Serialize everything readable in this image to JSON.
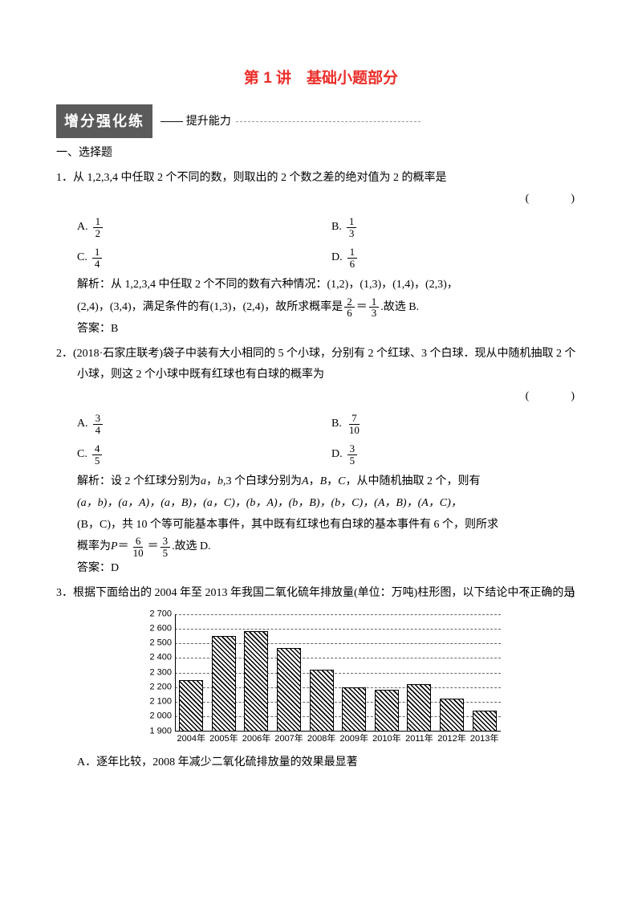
{
  "title": "第 1 讲　基础小题部分",
  "banner": {
    "box": "增分强化练",
    "sub": "—— 提升能力"
  },
  "section1": "一、选择题",
  "q1": {
    "num": "1．",
    "stem": "从 1,2,3,4 中任取 2 个不同的数，则取出的 2 个数之差的绝对值为 2 的概率是",
    "paren": "(　　)",
    "opts": {
      "A": "A.",
      "B": "B.",
      "C": "C.",
      "D": "D.",
      "a_n": "1",
      "a_d": "2",
      "b_n": "1",
      "b_d": "3",
      "c_n": "1",
      "c_d": "4",
      "d_n": "1",
      "d_d": "6"
    },
    "sol1": "解析：从 1,2,3,4 中任取 2 个不同的数有六种情况：(1,2)，(1,3)，(1,4)，(2,3)，",
    "sol2a": "(2,4)，(3,4)，满足条件的有(1,3)，(2,4)，故所求概率是",
    "f1_n": "2",
    "f1_d": "6",
    "eq": "＝",
    "f2_n": "1",
    "f2_d": "3",
    "sol2b": ".故选 B.",
    "ans": "答案：B"
  },
  "q2": {
    "num": "2．",
    "stem": "(2018·石家庄联考)袋子中装有大小相同的 5 个小球，分别有 2 个红球、3 个白球．现从中随机抽取 2 个小球，则这 2 个小球中既有红球也有白球的概率为",
    "paren": "(　　)",
    "opts": {
      "A": "A.",
      "B": "B.",
      "C": "C.",
      "D": "D.",
      "a_n": "3",
      "a_d": "4",
      "b_n": "7",
      "b_d": "10",
      "c_n": "4",
      "c_d": "5",
      "d_n": "3",
      "d_d": "5"
    },
    "sol1a": "解析：设 2 个红球分别为 ",
    "a": "a",
    "comma": "，",
    "b": "b",
    "sol1b": ",3 个白球分别为 ",
    "A": "A",
    "B": "B",
    "C": "C",
    "sol1c": "，从中随机抽取 2 个，则有",
    "sol2": "(a，b)，(a，A)，(a，B)，(a，C)，(b，A)，(b，B)，(b，C)，(A，B)，(A，C)，",
    "sol3": "(B，C)，共 10 个等可能基本事件，其中既有红球也有白球的基本事件有 6 个，则所求",
    "sol4a": "概率为 ",
    "P": "P",
    "eq1": "＝",
    "f1_n": "6",
    "f1_d": "10",
    "eq2": "＝",
    "f2_n": "3",
    "f2_d": "5",
    "sol4b": ".故选 D.",
    "ans": "答案：D"
  },
  "q3": {
    "num": "3．",
    "stem": "根据下面给出的 2004 年至 2013 年我国二氧化硫年排放量(单位：万吨)柱形图，以下结论中不正确的是",
    "paren": "(　　)",
    "optA": "A．逐年比较，2008 年减少二氧化硫排放量的效果最显著"
  },
  "chart": {
    "type": "bar",
    "ymin": 1900,
    "ymax": 2700,
    "ystep": 100,
    "yticks": [
      "2 700",
      "2 600",
      "2 500",
      "2 400",
      "2 300",
      "2 200",
      "2 100",
      "2 000",
      "1 900"
    ],
    "categories": [
      "2004年",
      "2005年",
      "2006年",
      "2007年",
      "2008年",
      "2009年",
      "2010年",
      "2011年",
      "2012年",
      "2013年"
    ],
    "values": [
      2250,
      2550,
      2580,
      2470,
      2320,
      2200,
      2180,
      2220,
      2120,
      2040
    ],
    "bar_color_pattern": "hatch-45",
    "bar_border": "#000000",
    "grid_style": "dashed",
    "grid_color": "#666666",
    "axis_color": "#000000",
    "label_fontsize": 11,
    "background": "#ffffff"
  }
}
